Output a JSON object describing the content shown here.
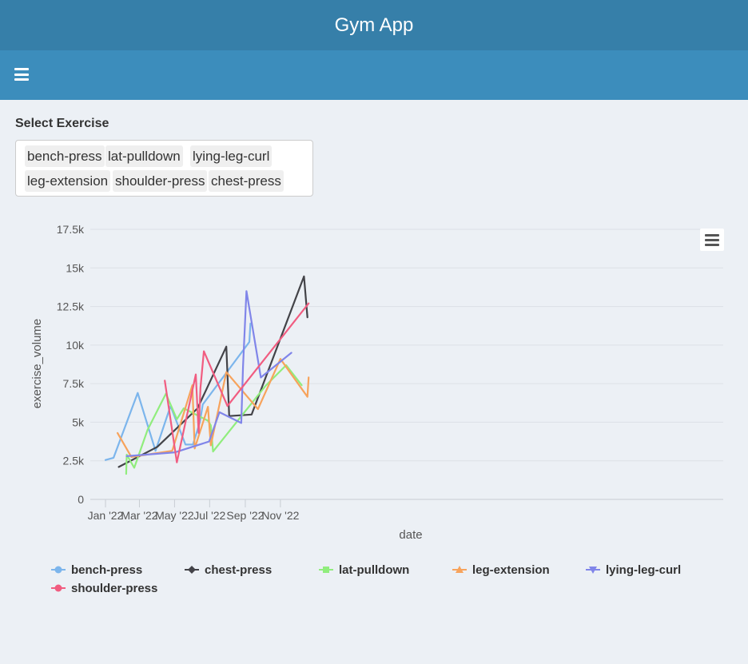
{
  "header": {
    "title": "Gym App"
  },
  "navbar": {
    "menu_icon": "hamburger-icon"
  },
  "exercise_select": {
    "label": "Select Exercise",
    "chips": [
      "bench-press",
      "lat-pulldown",
      "lying-leg-curl",
      "leg-extension",
      "shoulder-press",
      "chest-press"
    ]
  },
  "chart_data": {
    "type": "line",
    "title": "",
    "xlabel": "date",
    "ylabel": "exercise_volume",
    "x_ticks": [
      "Jan '22",
      "Mar '22",
      "May '22",
      "Jul '22",
      "Sep '22",
      "Nov '22"
    ],
    "y_ticks": [
      "0",
      "2.5k",
      "5k",
      "7.5k",
      "10k",
      "12.5k",
      "15k",
      "17.5k"
    ],
    "ylim": [
      0,
      17500
    ],
    "xlim": [
      "2022-01-01",
      "2022-12-21"
    ],
    "grid": true,
    "legend_position": "bottom",
    "series": [
      {
        "name": "bench-press",
        "color": "#7cb5ec",
        "marker": "circle",
        "points": [
          [
            "2022-01-01",
            2550
          ],
          [
            "2022-01-15",
            2700
          ],
          [
            "2022-02-26",
            6900
          ],
          [
            "2022-03-29",
            3150
          ],
          [
            "2022-04-24",
            6050
          ],
          [
            "2022-05-20",
            3550
          ],
          [
            "2022-06-02",
            3550
          ],
          [
            "2022-06-14",
            5000
          ],
          [
            "2022-06-19",
            6150
          ],
          [
            "2022-09-08",
            10200
          ],
          [
            "2022-09-10",
            11400
          ]
        ]
      },
      {
        "name": "chest-press",
        "color": "#434348",
        "marker": "diamond",
        "points": [
          [
            "2022-01-24",
            2100
          ],
          [
            "2022-04-01",
            3400
          ],
          [
            "2022-06-10",
            5900
          ],
          [
            "2022-07-30",
            9900
          ],
          [
            "2022-08-04",
            5400
          ],
          [
            "2022-09-12",
            5500
          ],
          [
            "2022-09-14",
            5700
          ],
          [
            "2022-12-12",
            14450
          ],
          [
            "2022-12-18",
            11800
          ]
        ]
      },
      {
        "name": "lat-pulldown",
        "color": "#90ed7d",
        "marker": "square",
        "points": [
          [
            "2022-02-06",
            1650
          ],
          [
            "2022-02-07",
            2900
          ],
          [
            "2022-02-20",
            2050
          ],
          [
            "2022-03-15",
            4500
          ],
          [
            "2022-04-16",
            6850
          ],
          [
            "2022-05-05",
            5200
          ],
          [
            "2022-05-17",
            5900
          ],
          [
            "2022-06-28",
            5100
          ],
          [
            "2022-07-03",
            4800
          ],
          [
            "2022-07-07",
            3100
          ],
          [
            "2022-10-06",
            7350
          ],
          [
            "2022-11-11",
            8700
          ],
          [
            "2022-12-08",
            7400
          ]
        ]
      },
      {
        "name": "leg-extension",
        "color": "#f7a35c",
        "marker": "triangle",
        "points": [
          [
            "2022-01-22",
            4300
          ],
          [
            "2022-02-15",
            2750
          ],
          [
            "2022-04-27",
            3150
          ],
          [
            "2022-06-01",
            7400
          ],
          [
            "2022-06-05",
            3300
          ],
          [
            "2022-06-28",
            6000
          ],
          [
            "2022-07-03",
            3500
          ],
          [
            "2022-07-30",
            8250
          ],
          [
            "2022-09-23",
            5850
          ],
          [
            "2022-11-01",
            9100
          ],
          [
            "2022-12-18",
            6650
          ],
          [
            "2022-12-20",
            7900
          ]
        ]
      },
      {
        "name": "lying-leg-curl",
        "color": "#8085e9",
        "marker": "triangle-down",
        "points": [
          [
            "2022-02-07",
            2800
          ],
          [
            "2022-05-02",
            3050
          ],
          [
            "2022-06-30",
            3750
          ],
          [
            "2022-07-18",
            5650
          ],
          [
            "2022-08-25",
            4950
          ],
          [
            "2022-08-28",
            8600
          ],
          [
            "2022-09-03",
            13500
          ],
          [
            "2022-09-28",
            7900
          ],
          [
            "2022-11-20",
            9500
          ]
        ]
      },
      {
        "name": "shoulder-press",
        "color": "#f15c80",
        "marker": "circle",
        "points": [
          [
            "2022-04-14",
            7700
          ],
          [
            "2022-05-05",
            2400
          ],
          [
            "2022-06-07",
            8100
          ],
          [
            "2022-06-12",
            4300
          ],
          [
            "2022-06-15",
            7200
          ],
          [
            "2022-06-21",
            9600
          ],
          [
            "2022-08-01",
            6050
          ],
          [
            "2022-12-20",
            12700
          ]
        ]
      }
    ]
  }
}
